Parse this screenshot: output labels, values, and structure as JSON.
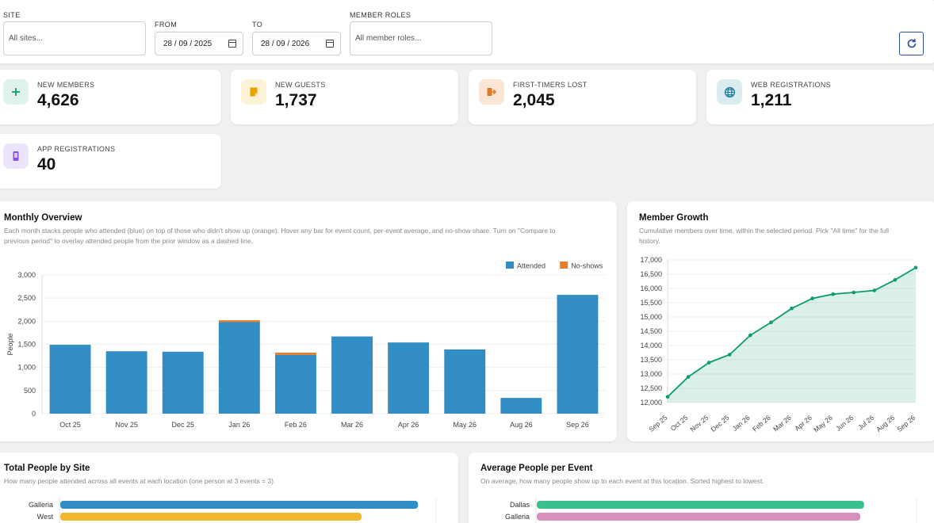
{
  "filters": {
    "site": {
      "label": "SITE",
      "placeholder": "All sites..."
    },
    "from": {
      "label": "FROM",
      "value": "28 / 09 / 2025"
    },
    "to": {
      "label": "TO",
      "value": "28 / 09 / 2026"
    },
    "roles": {
      "label": "MEMBER ROLES",
      "placeholder": "All member roles..."
    },
    "refresh_icon": "refresh-icon"
  },
  "stats": [
    {
      "label": "NEW MEMBERS",
      "value": "4,626",
      "icon": "plus-icon",
      "color": "#0f9d6a",
      "bg": "#dff3ea"
    },
    {
      "label": "NEW GUESTS",
      "value": "1,737",
      "icon": "note-icon",
      "color": "#e9a400",
      "bg": "#fdf1d6"
    },
    {
      "label": "FIRST-TIMERS LOST",
      "value": "2,045",
      "icon": "exit-icon",
      "color": "#e07b22",
      "bg": "#fbe6d6"
    },
    {
      "label": "WEB REGISTRATIONS",
      "value": "1,211",
      "icon": "globe-icon",
      "color": "#1f7ea0",
      "bg": "#dcebf0"
    },
    {
      "label": "APP REGISTRATIONS",
      "value": "40",
      "icon": "phone-icon",
      "color": "#8a4fe0",
      "bg": "#ece4fb"
    }
  ],
  "monthly": {
    "title": "Monthly Overview",
    "subtitle_1": "Each month stacks people who attended (blue) on top of those who didn't show up (orange). Hover any bar for event count, per-event average, and no-show share. Turn on \"Compare to",
    "subtitle_2": "previous period\" to overlay attended people from the prior window as a dashed line."
  },
  "growth": {
    "title": "Member Growth",
    "subtitle_1": "Cumulative members over time, within the selected period. Pick \"All time\" for the full",
    "subtitle_2": "history."
  },
  "site_total": {
    "title": "Total People by Site",
    "subtitle": "How many people attended across all events at each location (one person at 3 events = 3)."
  },
  "site_avg": {
    "title": "Average People per Event",
    "subtitle": "On average, how many people show up to each event at this location. Sorted highest to lowest."
  },
  "chart_data": [
    {
      "type": "bar",
      "stacked": true,
      "categories": [
        "Oct 25",
        "Nov 25",
        "Dec 25",
        "Jan 26",
        "Feb 26",
        "Mar 26",
        "Apr 26",
        "May 26",
        "Aug 26",
        "Sep 26"
      ],
      "series": [
        {
          "name": "Attended",
          "color": "#318dc4",
          "values": [
            1490,
            1350,
            1340,
            1980,
            1270,
            1670,
            1540,
            1390,
            340,
            2570
          ]
        },
        {
          "name": "No-shows",
          "color": "#e27f2d",
          "values": [
            0,
            0,
            0,
            40,
            50,
            0,
            0,
            0,
            0,
            0
          ]
        }
      ],
      "ylabel": "People",
      "yticks": [
        "0",
        "500",
        "1,000",
        "1,500",
        "2,000",
        "2,500",
        "3,000"
      ],
      "ylim": [
        0,
        3000
      ],
      "legend": "top-right"
    },
    {
      "type": "area",
      "color": "#0e9c66",
      "x": [
        "Sep 25",
        "Oct 25",
        "Nov 25",
        "Dec 25",
        "Jan 26",
        "Feb 26",
        "Mar 26",
        "Apr 26",
        "May 26",
        "Jun 26",
        "Jul 26",
        "Aug 26",
        "Sep 26"
      ],
      "y": [
        12200,
        12900,
        13400,
        13680,
        14360,
        14810,
        15300,
        15650,
        15800,
        15860,
        15930,
        16300,
        16730
      ],
      "yticks": [
        "12,000",
        "12,500",
        "13,000",
        "13,500",
        "14,000",
        "14,500",
        "15,000",
        "15,500",
        "16,000",
        "16,500",
        "17,000"
      ],
      "ylim": [
        12000,
        17000
      ]
    },
    {
      "type": "bar",
      "orientation": "horizontal",
      "categories": [
        "Galleria",
        "West"
      ],
      "values": [
        0.95,
        0.8
      ],
      "colors": [
        "#318dc4",
        "#f0b72f"
      ]
    },
    {
      "type": "bar",
      "orientation": "horizontal",
      "categories": [
        "Dallas",
        "Galleria"
      ],
      "values": [
        0.86,
        0.85
      ],
      "colors": [
        "#3bbf8f",
        "#d98fbd"
      ]
    }
  ]
}
